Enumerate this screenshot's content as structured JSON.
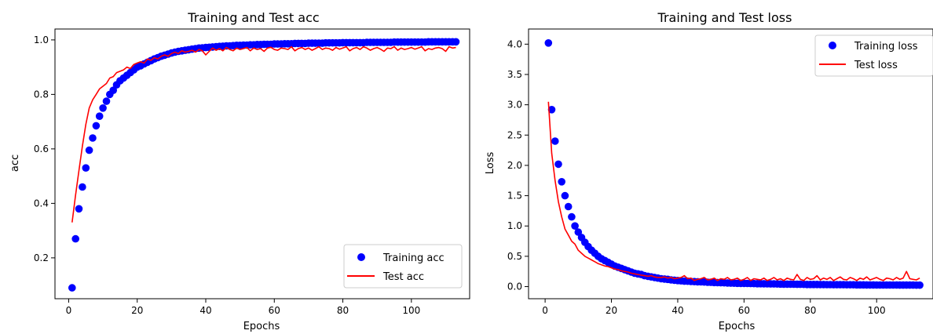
{
  "chart_data": [
    {
      "type": "line",
      "title": "Training and Test acc",
      "xlabel": "Epochs",
      "ylabel": "acc",
      "xlim": [
        -4,
        117
      ],
      "ylim": [
        0.05,
        1.04
      ],
      "xticks": [
        0,
        20,
        40,
        60,
        80,
        100
      ],
      "yticks": [
        0.2,
        0.4,
        0.6,
        0.8,
        1.0
      ],
      "xtick_labels": [
        "0",
        "20",
        "40",
        "60",
        "80",
        "100"
      ],
      "ytick_labels": [
        "0.2",
        "0.4",
        "0.6",
        "0.8",
        "1.0"
      ],
      "grid": false,
      "legend_position": "lower-right",
      "series": [
        {
          "name": "Training acc",
          "style": "markers",
          "color": "#0000ff",
          "x": [
            1,
            2,
            3,
            4,
            5,
            6,
            7,
            8,
            9,
            10,
            11,
            12,
            13,
            14,
            15,
            16,
            17,
            18,
            19,
            20,
            21,
            22,
            23,
            24,
            25,
            26,
            27,
            28,
            29,
            30,
            31,
            32,
            33,
            34,
            35,
            36,
            37,
            38,
            39,
            40,
            41,
            42,
            43,
            44,
            45,
            46,
            47,
            48,
            49,
            50,
            51,
            52,
            53,
            54,
            55,
            56,
            57,
            58,
            59,
            60,
            61,
            62,
            63,
            64,
            65,
            66,
            67,
            68,
            69,
            70,
            71,
            72,
            73,
            74,
            75,
            76,
            77,
            78,
            79,
            80,
            81,
            82,
            83,
            84,
            85,
            86,
            87,
            88,
            89,
            90,
            91,
            92,
            93,
            94,
            95,
            96,
            97,
            98,
            99,
            100,
            101,
            102,
            103,
            104,
            105,
            106,
            107,
            108,
            109,
            110,
            111,
            112,
            113
          ],
          "y": [
            0.09,
            0.27,
            0.38,
            0.46,
            0.53,
            0.595,
            0.64,
            0.685,
            0.72,
            0.75,
            0.775,
            0.8,
            0.815,
            0.835,
            0.85,
            0.86,
            0.87,
            0.88,
            0.89,
            0.9,
            0.905,
            0.912,
            0.918,
            0.924,
            0.93,
            0.935,
            0.94,
            0.944,
            0.948,
            0.952,
            0.955,
            0.958,
            0.96,
            0.962,
            0.964,
            0.966,
            0.968,
            0.97,
            0.971,
            0.972,
            0.973,
            0.974,
            0.975,
            0.976,
            0.977,
            0.978,
            0.978,
            0.979,
            0.98,
            0.98,
            0.981,
            0.981,
            0.982,
            0.982,
            0.983,
            0.983,
            0.984,
            0.984,
            0.984,
            0.985,
            0.985,
            0.985,
            0.986,
            0.986,
            0.986,
            0.987,
            0.987,
            0.987,
            0.987,
            0.988,
            0.988,
            0.988,
            0.988,
            0.988,
            0.989,
            0.989,
            0.989,
            0.989,
            0.989,
            0.99,
            0.99,
            0.99,
            0.99,
            0.99,
            0.99,
            0.99,
            0.991,
            0.991,
            0.991,
            0.991,
            0.991,
            0.991,
            0.991,
            0.991,
            0.992,
            0.992,
            0.992,
            0.992,
            0.992,
            0.992,
            0.992,
            0.992,
            0.992,
            0.992,
            0.993,
            0.993,
            0.993,
            0.993,
            0.993,
            0.993,
            0.993,
            0.993,
            0.993
          ]
        },
        {
          "name": "Test acc",
          "style": "line",
          "color": "#ff0000",
          "x": [
            1,
            2,
            3,
            4,
            5,
            6,
            7,
            8,
            9,
            10,
            11,
            12,
            13,
            14,
            15,
            16,
            17,
            18,
            19,
            20,
            21,
            22,
            23,
            24,
            25,
            26,
            27,
            28,
            29,
            30,
            31,
            32,
            33,
            34,
            35,
            36,
            37,
            38,
            39,
            40,
            41,
            42,
            43,
            44,
            45,
            46,
            47,
            48,
            49,
            50,
            51,
            52,
            53,
            54,
            55,
            56,
            57,
            58,
            59,
            60,
            61,
            62,
            63,
            64,
            65,
            66,
            67,
            68,
            69,
            70,
            71,
            72,
            73,
            74,
            75,
            76,
            77,
            78,
            79,
            80,
            81,
            82,
            83,
            84,
            85,
            86,
            87,
            88,
            89,
            90,
            91,
            92,
            93,
            94,
            95,
            96,
            97,
            98,
            99,
            100,
            101,
            102,
            103,
            104,
            105,
            106,
            107,
            108,
            109,
            110,
            111,
            112,
            113
          ],
          "y": [
            0.33,
            0.43,
            0.52,
            0.61,
            0.69,
            0.75,
            0.78,
            0.8,
            0.82,
            0.83,
            0.84,
            0.86,
            0.865,
            0.88,
            0.885,
            0.89,
            0.9,
            0.895,
            0.91,
            0.915,
            0.92,
            0.915,
            0.93,
            0.925,
            0.935,
            0.93,
            0.94,
            0.945,
            0.94,
            0.95,
            0.955,
            0.95,
            0.96,
            0.955,
            0.958,
            0.962,
            0.955,
            0.965,
            0.96,
            0.945,
            0.958,
            0.97,
            0.962,
            0.968,
            0.96,
            0.972,
            0.965,
            0.96,
            0.97,
            0.965,
            0.968,
            0.972,
            0.96,
            0.97,
            0.965,
            0.968,
            0.958,
            0.97,
            0.973,
            0.965,
            0.962,
            0.97,
            0.968,
            0.965,
            0.975,
            0.96,
            0.968,
            0.972,
            0.965,
            0.97,
            0.962,
            0.968,
            0.975,
            0.965,
            0.97,
            0.968,
            0.962,
            0.972,
            0.966,
            0.97,
            0.975,
            0.96,
            0.968,
            0.972,
            0.965,
            0.975,
            0.97,
            0.962,
            0.968,
            0.972,
            0.966,
            0.958,
            0.97,
            0.968,
            0.975,
            0.962,
            0.97,
            0.965,
            0.968,
            0.972,
            0.966,
            0.97,
            0.975,
            0.96,
            0.968,
            0.965,
            0.97,
            0.972,
            0.968,
            0.958,
            0.975,
            0.97,
            0.972
          ]
        }
      ]
    },
    {
      "type": "line",
      "title": "Training and Test loss",
      "xlabel": "Epochs",
      "ylabel": "Loss",
      "xlim": [
        -5,
        117
      ],
      "ylim": [
        -0.2,
        4.25
      ],
      "xticks": [
        0,
        20,
        40,
        60,
        80,
        100
      ],
      "yticks": [
        0.0,
        0.5,
        1.0,
        1.5,
        2.0,
        2.5,
        3.0,
        3.5,
        4.0
      ],
      "xtick_labels": [
        "0",
        "20",
        "40",
        "60",
        "80",
        "100"
      ],
      "ytick_labels": [
        "0.0",
        "0.5",
        "1.0",
        "1.5",
        "2.0",
        "2.5",
        "3.0",
        "3.5",
        "4.0"
      ],
      "grid": false,
      "legend_position": "upper-right",
      "series": [
        {
          "name": "Training loss",
          "style": "markers",
          "color": "#0000ff",
          "x": [
            1,
            2,
            3,
            4,
            5,
            6,
            7,
            8,
            9,
            10,
            11,
            12,
            13,
            14,
            15,
            16,
            17,
            18,
            19,
            20,
            21,
            22,
            23,
            24,
            25,
            26,
            27,
            28,
            29,
            30,
            31,
            32,
            33,
            34,
            35,
            36,
            37,
            38,
            39,
            40,
            41,
            42,
            43,
            44,
            45,
            46,
            47,
            48,
            49,
            50,
            51,
            52,
            53,
            54,
            55,
            56,
            57,
            58,
            59,
            60,
            61,
            62,
            63,
            64,
            65,
            66,
            67,
            68,
            69,
            70,
            71,
            72,
            73,
            74,
            75,
            76,
            77,
            78,
            79,
            80,
            81,
            82,
            83,
            84,
            85,
            86,
            87,
            88,
            89,
            90,
            91,
            92,
            93,
            94,
            95,
            96,
            97,
            98,
            99,
            100,
            101,
            102,
            103,
            104,
            105,
            106,
            107,
            108,
            109,
            110,
            111,
            112,
            113
          ],
          "y": [
            4.02,
            2.92,
            2.4,
            2.02,
            1.73,
            1.5,
            1.32,
            1.15,
            1.0,
            0.9,
            0.81,
            0.73,
            0.66,
            0.6,
            0.55,
            0.5,
            0.46,
            0.43,
            0.4,
            0.37,
            0.34,
            0.32,
            0.3,
            0.28,
            0.26,
            0.24,
            0.22,
            0.21,
            0.2,
            0.18,
            0.17,
            0.16,
            0.15,
            0.14,
            0.13,
            0.125,
            0.12,
            0.11,
            0.105,
            0.1,
            0.095,
            0.09,
            0.088,
            0.085,
            0.082,
            0.08,
            0.078,
            0.075,
            0.072,
            0.07,
            0.068,
            0.066,
            0.064,
            0.062,
            0.06,
            0.058,
            0.056,
            0.055,
            0.054,
            0.053,
            0.052,
            0.051,
            0.05,
            0.049,
            0.048,
            0.047,
            0.046,
            0.045,
            0.044,
            0.043,
            0.042,
            0.041,
            0.04,
            0.04,
            0.039,
            0.038,
            0.038,
            0.037,
            0.036,
            0.036,
            0.035,
            0.035,
            0.034,
            0.034,
            0.033,
            0.033,
            0.032,
            0.032,
            0.031,
            0.031,
            0.03,
            0.03,
            0.03,
            0.029,
            0.029,
            0.029,
            0.028,
            0.028,
            0.028,
            0.027,
            0.027,
            0.027,
            0.026,
            0.026,
            0.026,
            0.026,
            0.025,
            0.025,
            0.025,
            0.025,
            0.025,
            0.024,
            0.024
          ]
        },
        {
          "name": "Test loss",
          "style": "line",
          "color": "#ff0000",
          "x": [
            1,
            2,
            3,
            4,
            5,
            6,
            7,
            8,
            9,
            10,
            11,
            12,
            13,
            14,
            15,
            16,
            17,
            18,
            19,
            20,
            21,
            22,
            23,
            24,
            25,
            26,
            27,
            28,
            29,
            30,
            31,
            32,
            33,
            34,
            35,
            36,
            37,
            38,
            39,
            40,
            41,
            42,
            43,
            44,
            45,
            46,
            47,
            48,
            49,
            50,
            51,
            52,
            53,
            54,
            55,
            56,
            57,
            58,
            59,
            60,
            61,
            62,
            63,
            64,
            65,
            66,
            67,
            68,
            69,
            70,
            71,
            72,
            73,
            74,
            75,
            76,
            77,
            78,
            79,
            80,
            81,
            82,
            83,
            84,
            85,
            86,
            87,
            88,
            89,
            90,
            91,
            92,
            93,
            94,
            95,
            96,
            97,
            98,
            99,
            100,
            101,
            102,
            103,
            104,
            105,
            106,
            107,
            108,
            109,
            110,
            111,
            112,
            113
          ],
          "y": [
            3.05,
            2.2,
            1.75,
            1.4,
            1.15,
            0.95,
            0.85,
            0.75,
            0.7,
            0.6,
            0.55,
            0.5,
            0.47,
            0.44,
            0.41,
            0.38,
            0.36,
            0.34,
            0.33,
            0.31,
            0.29,
            0.28,
            0.26,
            0.25,
            0.24,
            0.22,
            0.21,
            0.2,
            0.19,
            0.18,
            0.17,
            0.18,
            0.16,
            0.15,
            0.15,
            0.16,
            0.14,
            0.15,
            0.13,
            0.14,
            0.15,
            0.18,
            0.13,
            0.14,
            0.1,
            0.12,
            0.13,
            0.15,
            0.11,
            0.12,
            0.14,
            0.1,
            0.13,
            0.12,
            0.15,
            0.11,
            0.12,
            0.14,
            0.1,
            0.12,
            0.15,
            0.1,
            0.13,
            0.12,
            0.11,
            0.14,
            0.1,
            0.12,
            0.15,
            0.11,
            0.13,
            0.1,
            0.14,
            0.12,
            0.11,
            0.2,
            0.12,
            0.1,
            0.15,
            0.12,
            0.13,
            0.18,
            0.11,
            0.14,
            0.12,
            0.15,
            0.1,
            0.13,
            0.16,
            0.12,
            0.11,
            0.15,
            0.13,
            0.1,
            0.14,
            0.12,
            0.16,
            0.11,
            0.13,
            0.15,
            0.12,
            0.1,
            0.14,
            0.13,
            0.11,
            0.15,
            0.12,
            0.14,
            0.25,
            0.13,
            0.12,
            0.11,
            0.14
          ]
        }
      ]
    }
  ]
}
